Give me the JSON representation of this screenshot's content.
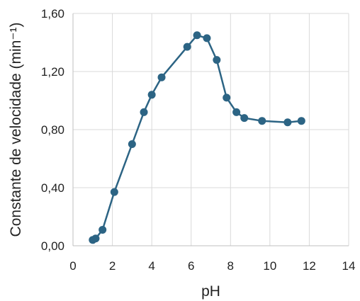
{
  "chart_data": {
    "type": "scatter",
    "title": "",
    "xlabel": "pH",
    "ylabel": "Constante de velocidade (min⁻¹)",
    "xlim": [
      0,
      14
    ],
    "ylim": [
      0,
      1.6
    ],
    "xticks": [
      0,
      2,
      4,
      6,
      8,
      10,
      12,
      14
    ],
    "yticks": [
      0,
      0.4,
      0.8,
      1.2,
      1.6
    ],
    "xtick_labels": [
      "0",
      "2",
      "4",
      "6",
      "8",
      "10",
      "12",
      "14"
    ],
    "ytick_labels": [
      "0,00",
      "0,40",
      "0,80",
      "1,20",
      "1,60"
    ],
    "grid": true,
    "legend": "none",
    "series": [
      {
        "color": "#2c6484",
        "x": [
          1.0,
          1.15,
          1.5,
          2.1,
          3.0,
          3.6,
          4.0,
          4.5,
          5.8,
          6.3,
          6.8,
          7.3,
          7.8,
          8.3,
          8.7,
          9.6,
          10.9,
          11.6
        ],
        "y": [
          0.04,
          0.05,
          0.11,
          0.37,
          0.7,
          0.92,
          1.04,
          1.16,
          1.37,
          1.45,
          1.43,
          1.28,
          1.02,
          0.92,
          0.88,
          0.86,
          0.85,
          0.86
        ]
      }
    ]
  }
}
